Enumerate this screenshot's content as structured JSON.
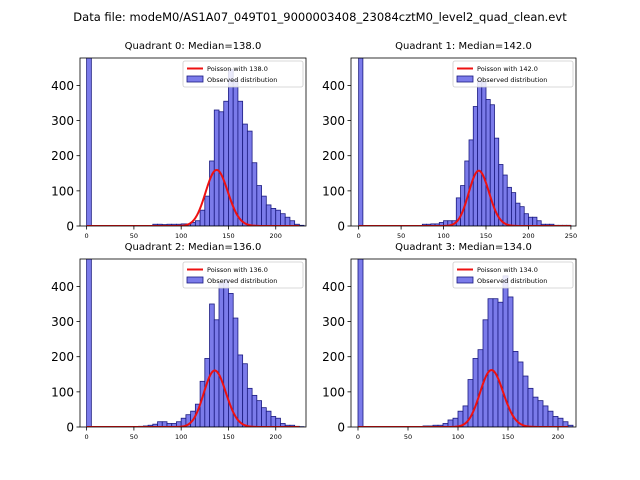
{
  "figure_title": "Data file: modeM0/AS1A07_049T01_9000003408_23084cztM0_level2_quad_clean.evt",
  "colors": {
    "bar_fill": "#7b7bea",
    "bar_edge": "#1a1a80",
    "poisson_line": "#ee1111",
    "axis": "#000000"
  },
  "chart_data": [
    {
      "type": "bar",
      "title": "Quadrant 0: Median=138.0",
      "legend": {
        "poisson_label": "Poisson with 138.0",
        "observed_label": "Observed distribution",
        "placement": "top-right"
      },
      "xlim": [
        -7,
        232
      ],
      "ylim": [
        0,
        478
      ],
      "xticks": [
        0,
        50,
        100,
        150,
        200
      ],
      "yticks": [
        0,
        100,
        200,
        300,
        400
      ],
      "bin_width": 5,
      "bars": [
        [
          0,
          478
        ],
        [
          70,
          5
        ],
        [
          75,
          5
        ],
        [
          80,
          4
        ],
        [
          85,
          5
        ],
        [
          90,
          5
        ],
        [
          95,
          5
        ],
        [
          100,
          6
        ],
        [
          105,
          6
        ],
        [
          110,
          10
        ],
        [
          115,
          15
        ],
        [
          120,
          45
        ],
        [
          125,
          85
        ],
        [
          130,
          185
        ],
        [
          135,
          330
        ],
        [
          140,
          325
        ],
        [
          145,
          355
        ],
        [
          150,
          445
        ],
        [
          155,
          415
        ],
        [
          160,
          355
        ],
        [
          165,
          290
        ],
        [
          170,
          270
        ],
        [
          175,
          180
        ],
        [
          180,
          115
        ],
        [
          185,
          85
        ],
        [
          190,
          60
        ],
        [
          195,
          50
        ],
        [
          200,
          45
        ],
        [
          205,
          35
        ],
        [
          210,
          25
        ],
        [
          215,
          15
        ],
        [
          220,
          5
        ],
        [
          225,
          2
        ]
      ],
      "poisson": {
        "mean": 138.0,
        "x_start": 0,
        "x_end": 225
      }
    },
    {
      "type": "bar",
      "title": "Quadrant 1: Median=142.0",
      "legend": {
        "poisson_label": "Poisson with 142.0",
        "observed_label": "Observed distribution",
        "placement": "top-right"
      },
      "xlim": [
        -9,
        256
      ],
      "ylim": [
        0,
        478
      ],
      "xticks": [
        0,
        50,
        100,
        150,
        200,
        250
      ],
      "yticks": [
        0,
        100,
        200,
        300,
        400
      ],
      "bin_width": 5,
      "bars": [
        [
          0,
          478
        ],
        [
          75,
          5
        ],
        [
          80,
          5
        ],
        [
          85,
          6
        ],
        [
          90,
          6
        ],
        [
          95,
          10
        ],
        [
          100,
          15
        ],
        [
          105,
          15
        ],
        [
          110,
          15
        ],
        [
          115,
          80
        ],
        [
          120,
          115
        ],
        [
          125,
          185
        ],
        [
          130,
          245
        ],
        [
          135,
          340
        ],
        [
          140,
          415
        ],
        [
          145,
          410
        ],
        [
          150,
          360
        ],
        [
          155,
          345
        ],
        [
          160,
          250
        ],
        [
          165,
          175
        ],
        [
          170,
          145
        ],
        [
          175,
          110
        ],
        [
          180,
          95
        ],
        [
          185,
          65
        ],
        [
          190,
          55
        ],
        [
          195,
          35
        ],
        [
          200,
          25
        ],
        [
          205,
          25
        ],
        [
          210,
          15
        ],
        [
          215,
          5
        ],
        [
          220,
          5
        ],
        [
          225,
          5
        ],
        [
          230,
          2
        ],
        [
          235,
          2
        ],
        [
          240,
          2
        ],
        [
          245,
          2
        ]
      ],
      "poisson": {
        "mean": 142.0,
        "x_start": 0,
        "x_end": 250
      }
    },
    {
      "type": "bar",
      "title": "Quadrant 2: Median=136.0",
      "legend": {
        "poisson_label": "Poisson with 136.0",
        "observed_label": "Observed distribution",
        "placement": "top-right"
      },
      "xlim": [
        -7,
        232
      ],
      "ylim": [
        0,
        478
      ],
      "xticks": [
        0,
        50,
        100,
        150,
        200
      ],
      "yticks": [
        0,
        100,
        200,
        300,
        400
      ],
      "bin_width": 5,
      "bars": [
        [
          0,
          478
        ],
        [
          55,
          2
        ],
        [
          60,
          3
        ],
        [
          65,
          5
        ],
        [
          70,
          8
        ],
        [
          75,
          15
        ],
        [
          80,
          15
        ],
        [
          85,
          10
        ],
        [
          90,
          10
        ],
        [
          95,
          15
        ],
        [
          100,
          25
        ],
        [
          105,
          35
        ],
        [
          110,
          45
        ],
        [
          115,
          65
        ],
        [
          120,
          130
        ],
        [
          125,
          195
        ],
        [
          130,
          350
        ],
        [
          135,
          305
        ],
        [
          140,
          410
        ],
        [
          145,
          420
        ],
        [
          150,
          380
        ],
        [
          155,
          310
        ],
        [
          160,
          205
        ],
        [
          165,
          180
        ],
        [
          170,
          110
        ],
        [
          175,
          90
        ],
        [
          180,
          75
        ],
        [
          185,
          55
        ],
        [
          190,
          45
        ],
        [
          195,
          30
        ],
        [
          200,
          25
        ],
        [
          205,
          10
        ],
        [
          210,
          5
        ],
        [
          215,
          5
        ],
        [
          220,
          2
        ],
        [
          225,
          1
        ]
      ],
      "poisson": {
        "mean": 136.0,
        "x_start": 0,
        "x_end": 225
      }
    },
    {
      "type": "bar",
      "title": "Quadrant 3: Median=134.0",
      "legend": {
        "poisson_label": "Poisson with 134.0",
        "observed_label": "Observed distribution",
        "placement": "top-right"
      },
      "xlim": [
        -7,
        218
      ],
      "ylim": [
        0,
        478
      ],
      "xticks": [
        0,
        50,
        100,
        150,
        200
      ],
      "yticks": [
        0,
        100,
        200,
        300,
        400
      ],
      "bin_width": 5,
      "bars": [
        [
          0,
          478
        ],
        [
          65,
          3
        ],
        [
          70,
          3
        ],
        [
          75,
          5
        ],
        [
          80,
          5
        ],
        [
          85,
          10
        ],
        [
          90,
          20
        ],
        [
          95,
          25
        ],
        [
          100,
          45
        ],
        [
          105,
          60
        ],
        [
          110,
          135
        ],
        [
          115,
          195
        ],
        [
          120,
          220
        ],
        [
          125,
          305
        ],
        [
          130,
          365
        ],
        [
          135,
          365
        ],
        [
          140,
          355
        ],
        [
          145,
          430
        ],
        [
          150,
          370
        ],
        [
          155,
          215
        ],
        [
          160,
          185
        ],
        [
          165,
          145
        ],
        [
          170,
          110
        ],
        [
          175,
          85
        ],
        [
          180,
          75
        ],
        [
          185,
          60
        ],
        [
          190,
          45
        ],
        [
          195,
          30
        ],
        [
          200,
          25
        ],
        [
          205,
          15
        ],
        [
          210,
          5
        ]
      ],
      "poisson": {
        "mean": 134.0,
        "x_start": 0,
        "x_end": 210
      }
    }
  ]
}
